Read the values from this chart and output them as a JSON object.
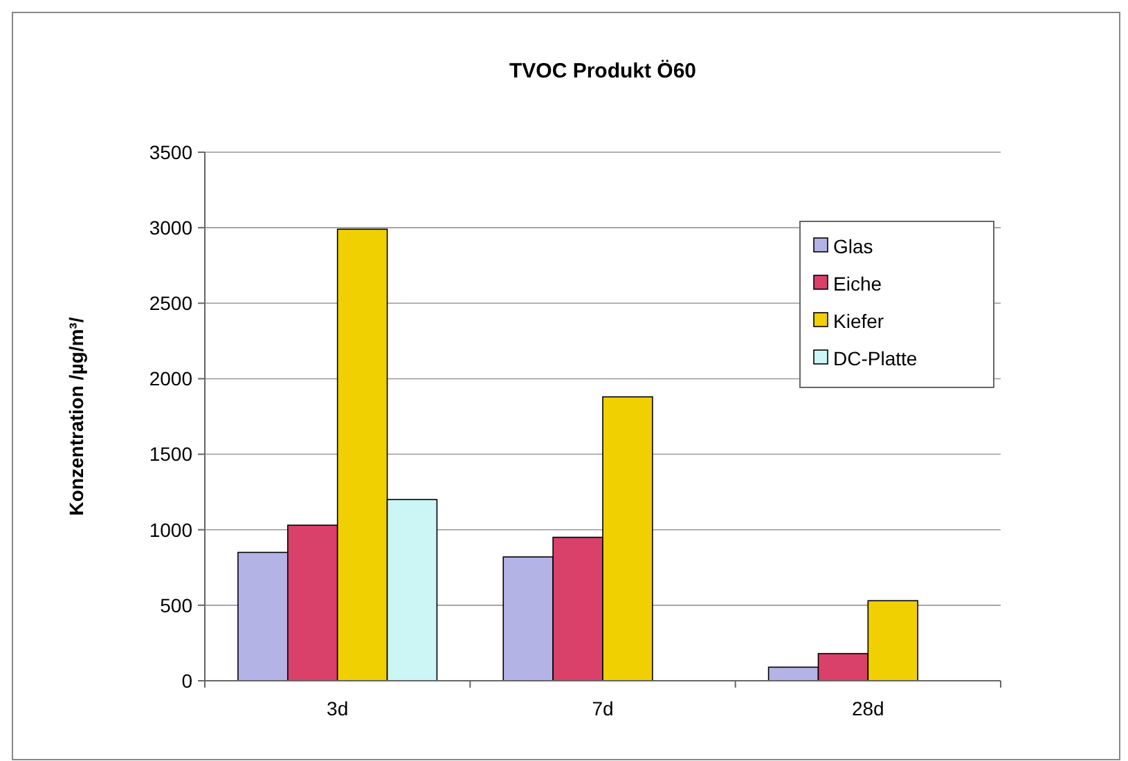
{
  "chart_data": {
    "type": "bar",
    "title": "TVOC Produkt Ö60",
    "ylabel": "Konzentration /µg/m³/",
    "categories": [
      "3d",
      "7d",
      "28d"
    ],
    "series": [
      {
        "name": "Glas",
        "color": "#b3b3e6",
        "values": [
          850,
          820,
          90
        ]
      },
      {
        "name": "Eiche",
        "color": "#d9406a",
        "values": [
          1030,
          950,
          180
        ]
      },
      {
        "name": "Kiefer",
        "color": "#f0d000",
        "values": [
          2990,
          1880,
          530
        ]
      },
      {
        "name": "DC-Platte",
        "color": "#ccf5f5",
        "values": [
          1200,
          null,
          null
        ]
      }
    ],
    "ylim": [
      0,
      3500
    ],
    "yticks": [
      0,
      500,
      1000,
      1500,
      2000,
      2500,
      3000,
      3500
    ],
    "grid": "y",
    "legend": "top right"
  }
}
